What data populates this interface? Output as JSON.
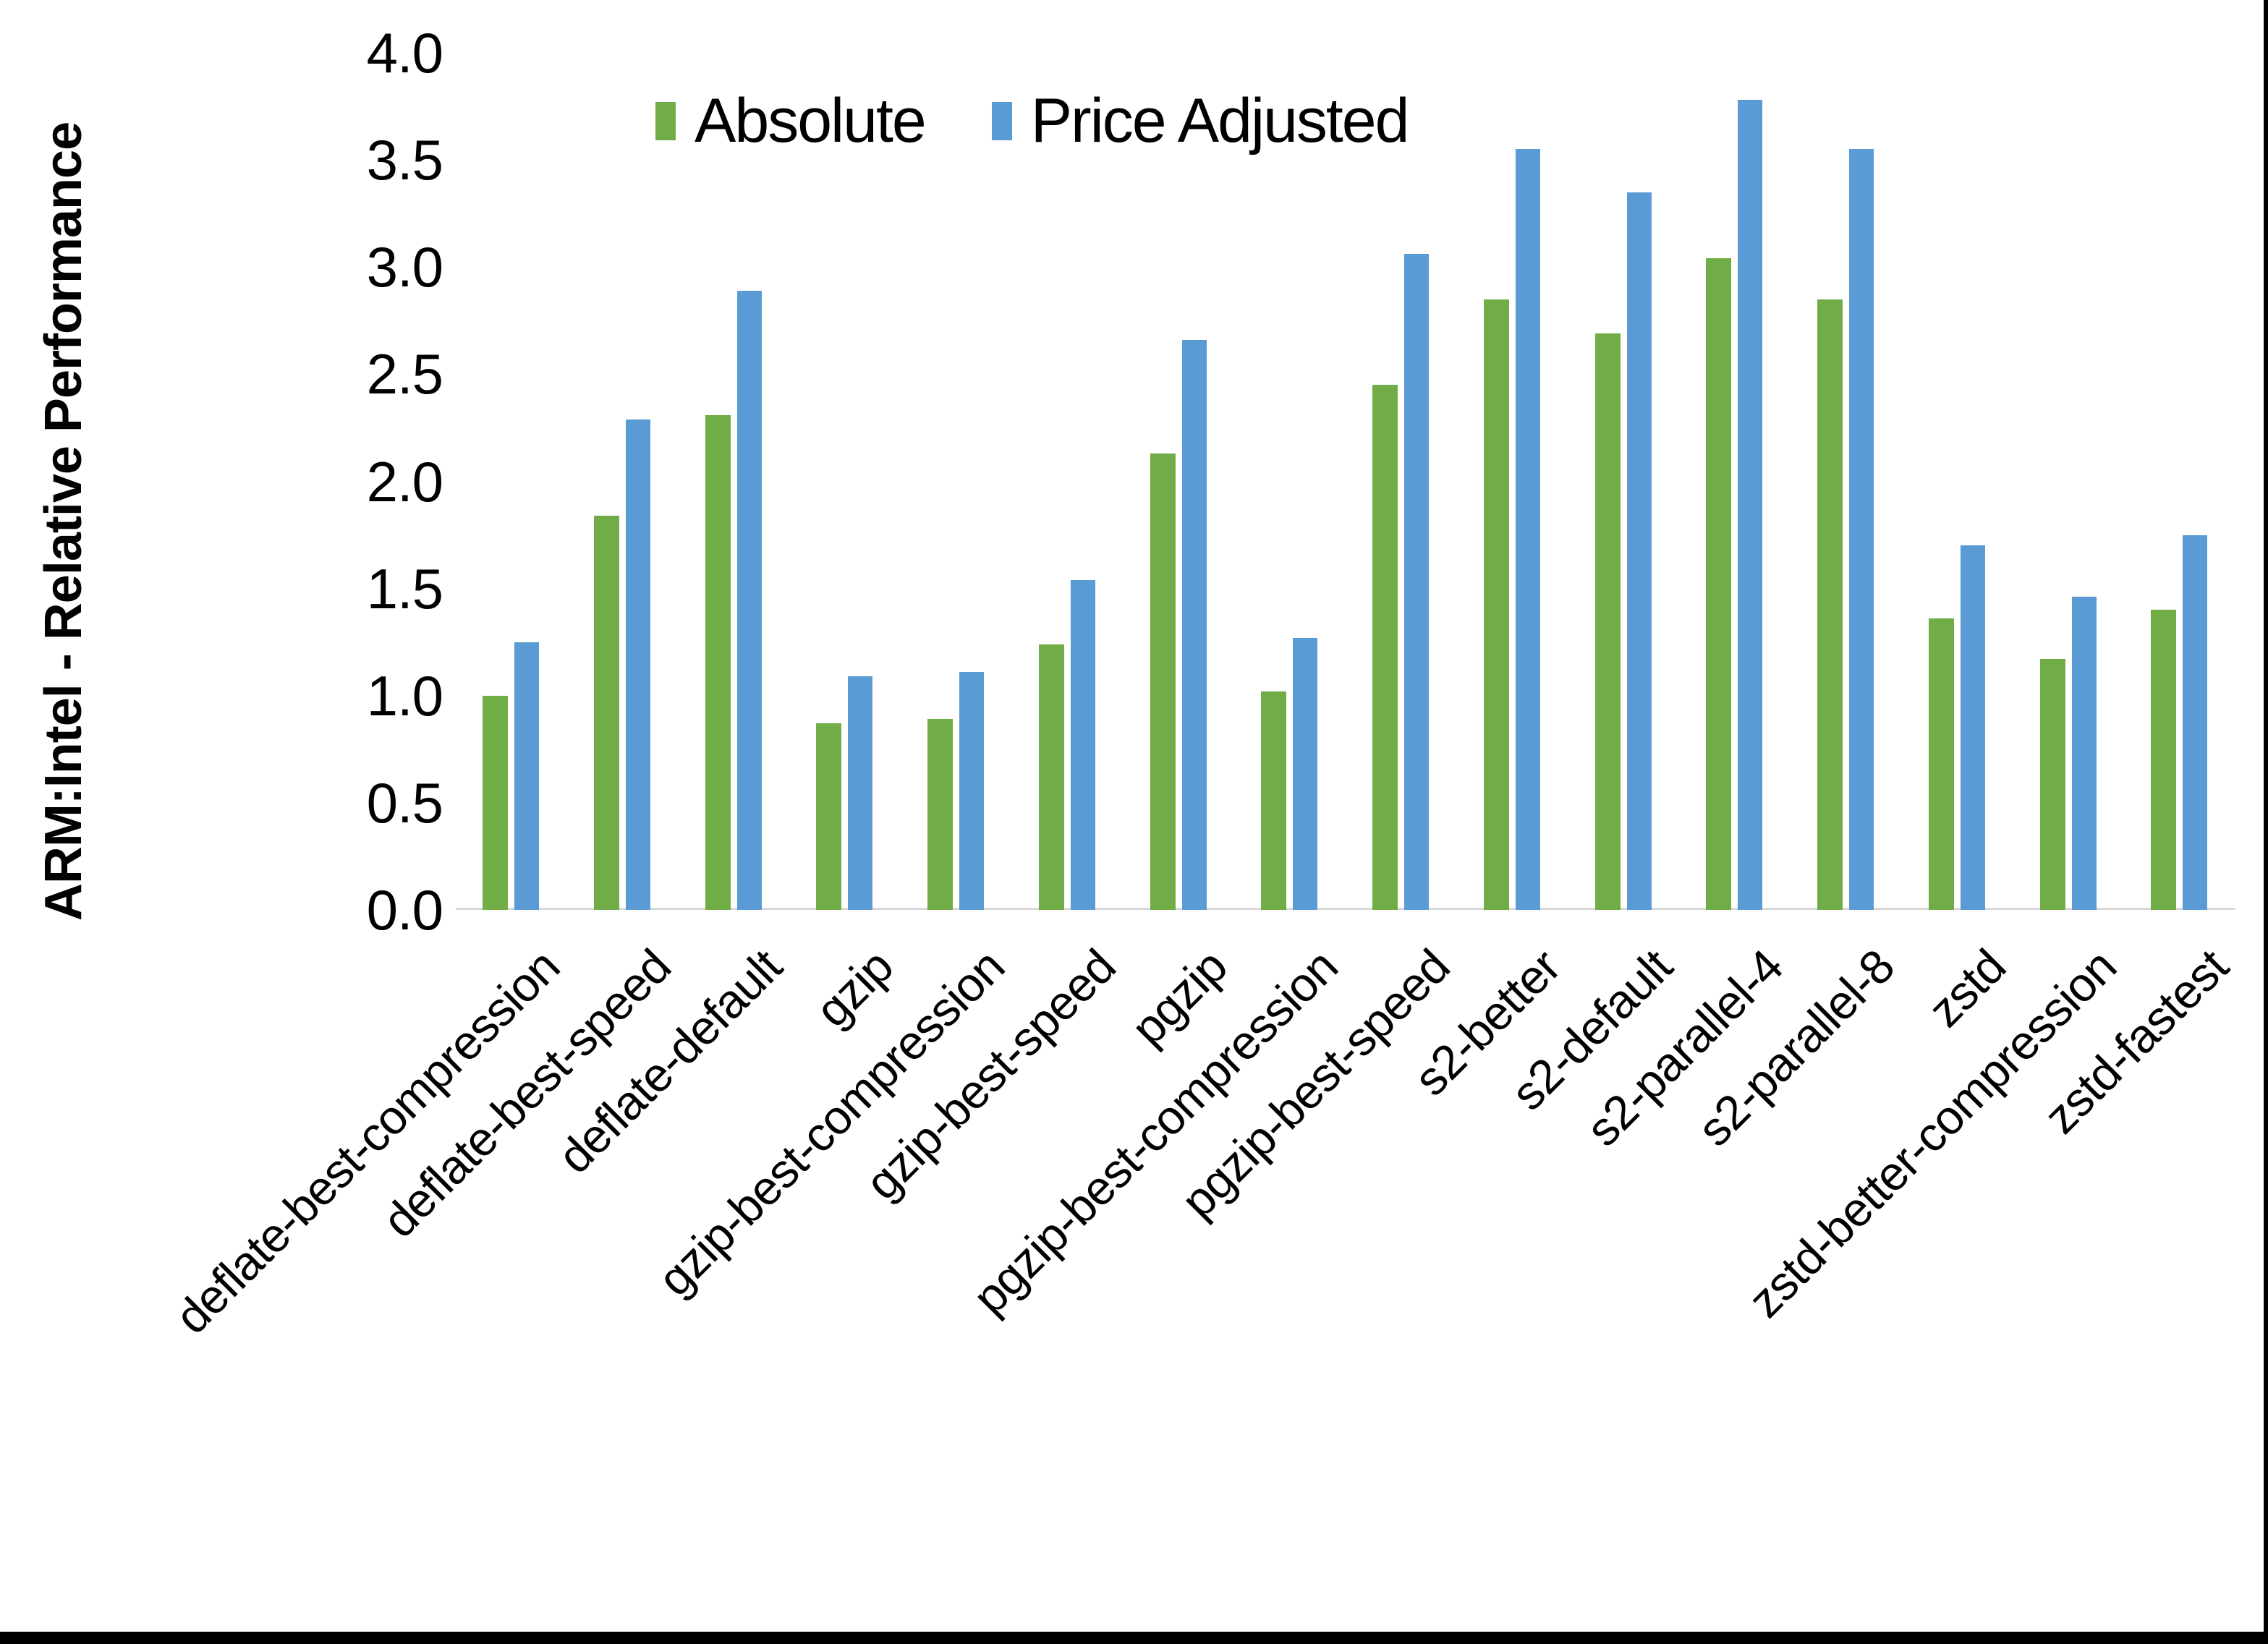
{
  "chart_data": {
    "type": "bar",
    "title": "",
    "xlabel": "",
    "ylabel": "ARM:Intel - Relative Performance",
    "ylim": [
      0.0,
      4.0
    ],
    "ytick_step": 0.5,
    "ytick_labels": [
      "0.0",
      "0.5",
      "1.0",
      "1.5",
      "2.0",
      "2.5",
      "3.0",
      "3.5",
      "4.0"
    ],
    "grid": false,
    "legend_position": "top-center",
    "categories": [
      "deflate-best-compression",
      "deflate-best-speed",
      "deflate-default",
      "gzip",
      "gzip-best-compression",
      "gzip-best-speed",
      "pgzip",
      "pgzip-best-compression",
      "pgzip-best-speed",
      "s2-better",
      "s2-default",
      "s2-parallel-4",
      "s2-parallel-8",
      "zstd",
      "zstd-better-compression",
      "zstd-fastest"
    ],
    "series": [
      {
        "name": "Absolute",
        "color": "#70AD47",
        "values": [
          1.0,
          1.84,
          2.31,
          0.87,
          0.89,
          1.24,
          2.13,
          1.02,
          2.45,
          2.85,
          2.69,
          3.04,
          2.85,
          1.36,
          1.17,
          1.4
        ]
      },
      {
        "name": "Price Adjusted",
        "color": "#5B9BD5",
        "values": [
          1.25,
          2.29,
          2.89,
          1.09,
          1.11,
          1.54,
          2.66,
          1.27,
          3.06,
          3.55,
          3.35,
          3.78,
          3.55,
          1.7,
          1.46,
          1.75
        ]
      }
    ]
  },
  "colors": {
    "axis_line": "#D9D9D9",
    "text": "#000000",
    "frame_border": "#000000",
    "background": "#FFFFFF"
  }
}
